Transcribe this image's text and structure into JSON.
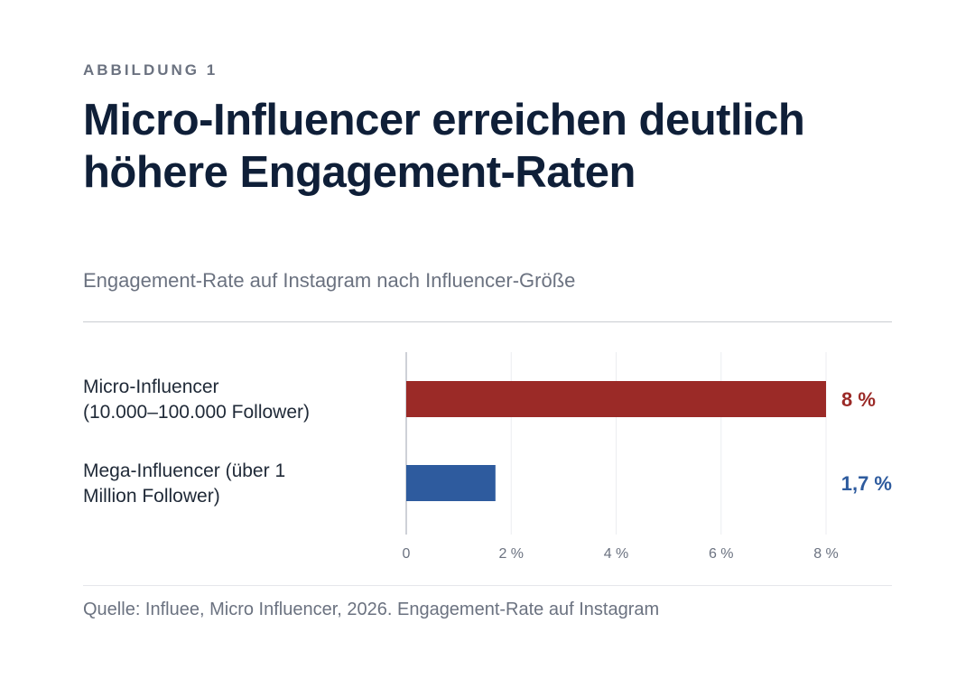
{
  "header": {
    "eyebrow": "ABBILDUNG 1",
    "title": "Micro-Influencer erreichen deutlich höhere Engagement-Raten",
    "subtitle": "Engagement-Rate auf Instagram nach Influencer-Größe"
  },
  "footer": {
    "source": "Quelle: Influee, Micro Influencer, 2026. Engagement-Rate auf Instagram"
  },
  "chart_data": {
    "type": "bar",
    "orientation": "horizontal",
    "title": "Micro-Influencer erreichen deutlich höhere Engagement-Raten",
    "subtitle": "Engagement-Rate auf Instagram nach Influencer-Größe",
    "xlabel": "",
    "ylabel": "",
    "xlim": [
      0,
      8
    ],
    "grid": true,
    "legend": "none",
    "ticks": [
      {
        "value": 0,
        "label": "0"
      },
      {
        "value": 2,
        "label": "2 %"
      },
      {
        "value": 4,
        "label": "4 %"
      },
      {
        "value": 6,
        "label": "6 %"
      },
      {
        "value": 8,
        "label": "8 %"
      }
    ],
    "categories": [
      {
        "label_lines": [
          "Micro-Influencer",
          "(10.000–100.000 Follower)"
        ],
        "value": 8,
        "value_label": "8 %",
        "color": "#9b2a27"
      },
      {
        "label_lines": [
          "Mega-Influencer (über 1",
          "Million Follower)"
        ],
        "value": 1.7,
        "value_label": "1,7 %",
        "color": "#2e5b9e"
      }
    ]
  }
}
